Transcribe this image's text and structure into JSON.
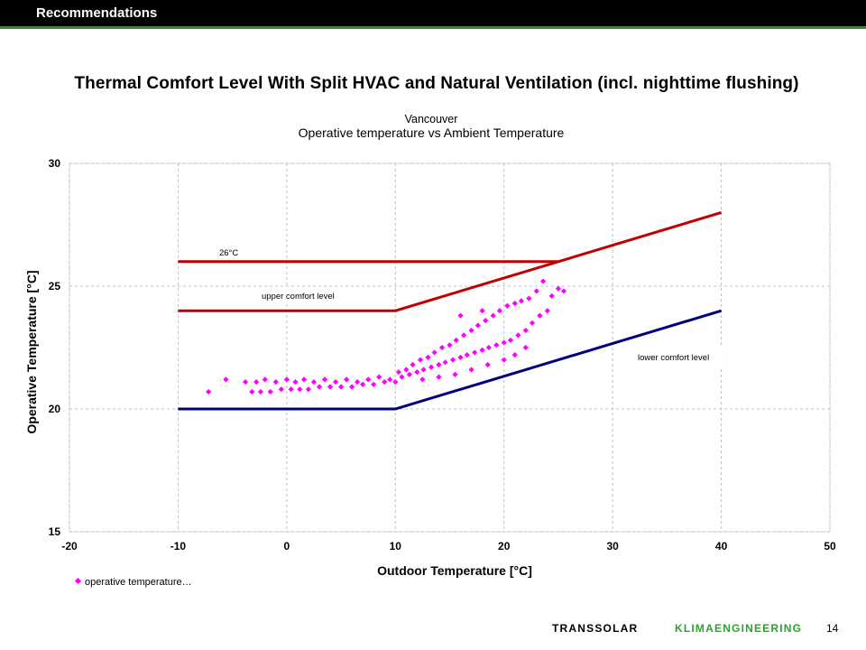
{
  "header": {
    "section": "Recommendations"
  },
  "slide": {
    "title": "Thermal Comfort Level With Split HVAC and Natural Ventilation (incl. nighttime flushing)"
  },
  "footer": {
    "brand_part1": "TRANSSOLAR",
    "brand_part2": "KLIMAENGINEERING",
    "page_number": "14"
  },
  "colors": {
    "topbar": "#000000",
    "accent_green": "#2e8b2e",
    "red_line": "#c00000",
    "blue_line": "#00007f",
    "points": "#ff00ff"
  },
  "chart_data": {
    "type": "scatter",
    "title": "Vancouver",
    "subtitle": "Operative temperature vs Ambient Temperature",
    "xlabel": "Outdoor Temperature [°C]",
    "ylabel": "Operative Temperature  [°C]",
    "xlim": [
      -20,
      50
    ],
    "ylim": [
      15,
      30
    ],
    "xticks": [
      -20,
      -10,
      0,
      10,
      20,
      30,
      40,
      50
    ],
    "yticks": [
      15,
      20,
      25,
      30
    ],
    "grid": true,
    "legend": {
      "placement": "bottom-left",
      "entries": [
        "operative temperature…"
      ]
    },
    "reference_lines": [
      {
        "label": "26°C",
        "color": "#c00000",
        "points": [
          [
            -10,
            26
          ],
          [
            25,
            26
          ]
        ]
      },
      {
        "label": "upper comfort level",
        "color": "#c00000",
        "points": [
          [
            -10,
            24
          ],
          [
            10,
            24
          ],
          [
            40,
            28
          ]
        ]
      },
      {
        "label": "lower comfort level",
        "color": "#00007f",
        "points": [
          [
            -10,
            20
          ],
          [
            10,
            20
          ],
          [
            40,
            24
          ]
        ]
      }
    ],
    "series": [
      {
        "name": "operative temperature…",
        "color": "#ff00ff",
        "points": [
          [
            -7.2,
            20.7
          ],
          [
            -5.6,
            21.2
          ],
          [
            -3.8,
            21.1
          ],
          [
            -3.2,
            20.7
          ],
          [
            -2.8,
            21.1
          ],
          [
            -2.4,
            20.7
          ],
          [
            -2.0,
            21.2
          ],
          [
            -1.5,
            20.7
          ],
          [
            -1.0,
            21.1
          ],
          [
            -0.5,
            20.8
          ],
          [
            0.0,
            21.2
          ],
          [
            0.4,
            20.8
          ],
          [
            0.8,
            21.1
          ],
          [
            1.2,
            20.8
          ],
          [
            1.6,
            21.2
          ],
          [
            2.0,
            20.8
          ],
          [
            2.5,
            21.1
          ],
          [
            3.0,
            20.9
          ],
          [
            3.5,
            21.2
          ],
          [
            4.0,
            20.9
          ],
          [
            4.5,
            21.1
          ],
          [
            5.0,
            20.9
          ],
          [
            5.5,
            21.2
          ],
          [
            6.0,
            20.9
          ],
          [
            6.5,
            21.1
          ],
          [
            7.0,
            21.0
          ],
          [
            7.5,
            21.2
          ],
          [
            8.0,
            21.0
          ],
          [
            8.5,
            21.3
          ],
          [
            9.0,
            21.1
          ],
          [
            9.5,
            21.2
          ],
          [
            10.0,
            21.1
          ],
          [
            10.3,
            21.5
          ],
          [
            10.6,
            21.3
          ],
          [
            11.0,
            21.6
          ],
          [
            11.3,
            21.4
          ],
          [
            11.6,
            21.8
          ],
          [
            12.0,
            21.5
          ],
          [
            12.3,
            22.0
          ],
          [
            12.6,
            21.6
          ],
          [
            13.0,
            22.1
          ],
          [
            13.3,
            21.7
          ],
          [
            13.6,
            22.3
          ],
          [
            14.0,
            21.8
          ],
          [
            14.3,
            22.5
          ],
          [
            14.6,
            21.9
          ],
          [
            15.0,
            22.6
          ],
          [
            15.3,
            22.0
          ],
          [
            15.6,
            22.8
          ],
          [
            16.0,
            22.1
          ],
          [
            16.3,
            23.0
          ],
          [
            16.6,
            22.2
          ],
          [
            17.0,
            23.2
          ],
          [
            17.3,
            22.3
          ],
          [
            17.6,
            23.4
          ],
          [
            18.0,
            22.4
          ],
          [
            18.3,
            23.6
          ],
          [
            18.6,
            22.5
          ],
          [
            19.0,
            23.8
          ],
          [
            19.3,
            22.6
          ],
          [
            19.6,
            24.0
          ],
          [
            20.0,
            22.7
          ],
          [
            20.3,
            24.2
          ],
          [
            20.6,
            22.8
          ],
          [
            21.0,
            24.3
          ],
          [
            21.3,
            23.0
          ],
          [
            21.6,
            24.4
          ],
          [
            22.0,
            23.2
          ],
          [
            22.3,
            24.5
          ],
          [
            22.6,
            23.5
          ],
          [
            23.0,
            24.8
          ],
          [
            23.3,
            23.8
          ],
          [
            23.6,
            25.2
          ],
          [
            24.0,
            24.0
          ],
          [
            24.4,
            24.6
          ],
          [
            25.0,
            24.9
          ],
          [
            25.5,
            24.8
          ],
          [
            12.5,
            21.2
          ],
          [
            14.0,
            21.3
          ],
          [
            15.5,
            21.4
          ],
          [
            17.0,
            21.6
          ],
          [
            18.5,
            21.8
          ],
          [
            20.0,
            22.0
          ],
          [
            21.0,
            22.2
          ],
          [
            22.0,
            22.5
          ],
          [
            16.0,
            23.8
          ],
          [
            18.0,
            24.0
          ]
        ]
      }
    ]
  }
}
